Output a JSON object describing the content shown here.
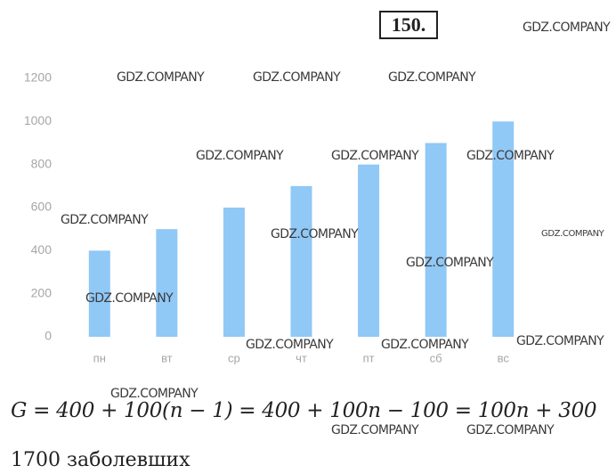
{
  "problem_number": "150.",
  "chart_data": {
    "type": "bar",
    "categories": [
      "пн",
      "вт",
      "ср",
      "чт",
      "пт",
      "сб",
      "вс"
    ],
    "values": [
      400,
      500,
      600,
      700,
      800,
      900,
      1000
    ],
    "color": "#90c8f6",
    "ylim": [
      0,
      1200
    ],
    "yticks": [
      0,
      200,
      400,
      600,
      800,
      1000,
      1200
    ],
    "grid": false
  },
  "formula": "G = 400 + 100(n − 1) = 400 + 100n − 100 = 100n + 300",
  "answer": "1700 заболевших",
  "watermark": "GDZ.COMPANY"
}
